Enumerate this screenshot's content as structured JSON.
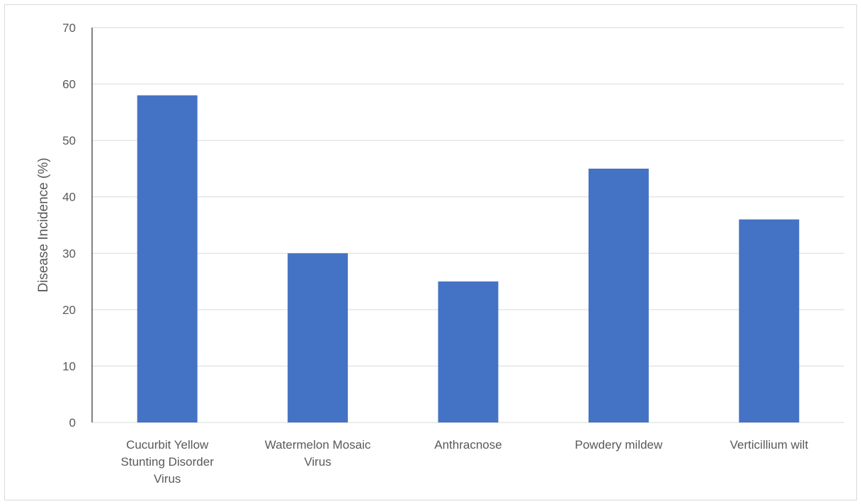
{
  "chart_data": {
    "type": "bar",
    "categories": [
      "Cucurbit Yellow Stunting Disorder Virus",
      "Watermelon Mosaic Virus",
      "Anthracnose",
      "Powdery mildew",
      "Verticillium wilt"
    ],
    "category_label_lines": [
      [
        "Cucurbit Yellow",
        "Stunting Disorder",
        "Virus"
      ],
      [
        "Watermelon Mosaic",
        "Virus"
      ],
      [
        "Anthracnose"
      ],
      [
        "Powdery mildew"
      ],
      [
        "Verticillium wilt"
      ]
    ],
    "values": [
      58,
      30,
      25,
      45,
      36
    ],
    "title": "",
    "xlabel": "",
    "ylabel": "Disease Incidence (%)",
    "ylim": [
      0,
      70
    ],
    "yticks": [
      0,
      10,
      20,
      30,
      40,
      50,
      60,
      70
    ],
    "grid": true,
    "legend": "none",
    "bar_color": "#4472c4",
    "gridline_color": "#d9d9d9",
    "text_color": "#595959"
  }
}
